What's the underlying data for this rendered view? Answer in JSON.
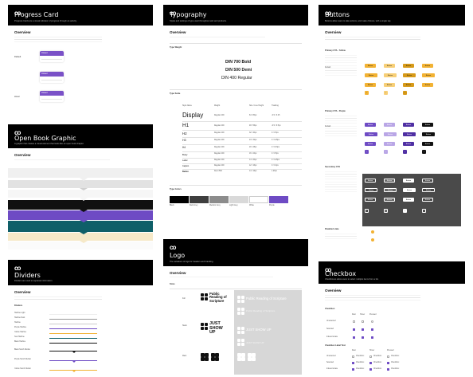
{
  "colors": {
    "black": "#000000",
    "purple": "#6e4bc4",
    "purple_light": "#b9a6e6",
    "yellow": "#f2b233",
    "yellow_dark": "#d79a18",
    "teal": "#0f5f68",
    "cream": "#f6e9c8",
    "grey_dark": "#4a4a4a"
  },
  "progress_card": {
    "title": "Progress Card",
    "subtitle": "Progress Cards are a visual indicator of progress through an activity.",
    "overview_heading": "Overview",
    "row_labels": [
      "Default",
      "Hover"
    ],
    "card_label": "Closed"
  },
  "book_graphic": {
    "title": "Open Book Graphic",
    "subtitle": "A graphic that creates a visual element that looks like an open book chapter.",
    "overview_heading": "Overview"
  },
  "dividers": {
    "title": "Dividers",
    "subtitle": "Dividers are used to separate information.",
    "overview_heading": "Overview",
    "list_heading": "Dividers",
    "items": [
      "Hairline Light",
      "Hairline Dark",
      "Hairline",
      "Purple Hairline",
      "Yellow Hairline",
      "Teal Hairline",
      "Black Hairline",
      "Black Notch Divider",
      "Purple Notch Divider",
      "Yellow Notch Divider"
    ]
  },
  "typography": {
    "title": "Typography",
    "subtitle": "Styles and settings of type used throughout web and products.",
    "overview_heading": "Overview",
    "weight_heading": "Type Weight",
    "weights": [
      "DIN 700 Bold",
      "DIN 500 Demi",
      "DIN 400 Regular"
    ],
    "scale_heading": "Type Scale",
    "scale_columns": [
      "Style Name",
      "Weight",
      "Size / Line Height",
      "Tracking"
    ],
    "scale_rows": [
      {
        "name": "Display",
        "weight": "Regular 400",
        "size": "64 / 80px",
        "track": "-0.5 / 0.25"
      },
      {
        "name": "H1",
        "weight": "Regular 400",
        "size": "48 / 56px",
        "track": "-0.5 / 0.5px"
      },
      {
        "name": "H2",
        "weight": "Regular 400",
        "size": "32 / 40px",
        "track": "0 / 0.5px"
      },
      {
        "name": "H3",
        "weight": "Regular 400",
        "size": "24 / 32px",
        "track": "0 / 0.25px"
      },
      {
        "name": "H4",
        "weight": "Regular 400",
        "size": "20 / 28px",
        "track": "0 / 0.15px"
      },
      {
        "name": "Body",
        "weight": "Regular 400",
        "size": "16 / 24px",
        "track": "0 / 0.5px"
      },
      {
        "name": "Label",
        "weight": "Regular 400",
        "size": "14 / 20px",
        "track": "0 / 0.25px"
      },
      {
        "name": "Caption",
        "weight": "Regular 400",
        "size": "12 / 16px",
        "track": "0 / 0.4px"
      },
      {
        "name": "Button",
        "weight": "Demi 500",
        "size": "14 / 16px",
        "track": "1.25px"
      }
    ],
    "colors_heading": "Type Colors",
    "swatch_names": [
      "Black",
      "Dark Grey",
      "Medium Grey",
      "Light Grey",
      "White",
      "Purple"
    ]
  },
  "logo": {
    "title": "Logo",
    "subtitle": "The variations of logo for headers and branding.",
    "overview_heading": "Overview",
    "sizes_heading": "Sizes",
    "row_labels": [
      "Full",
      "Stack",
      "Mark"
    ],
    "full_name": "Public Reading of Scripture",
    "stack_name": "JUST SHOW UP"
  },
  "buttons": {
    "title": "Buttons",
    "subtitle": "Buttons allow users to take actions, and make choices, with a single tap.",
    "overview_heading": "Overview",
    "primary_yellow": "Primary CTA - Yellow",
    "primary_purple": "Primary CTA - Purple",
    "secondary": "Secondary CTA",
    "disabled": "Disabled state",
    "state_labels": [
      "Default",
      "Hover",
      "Pressed",
      "Active"
    ],
    "button_label": "Button",
    "state_rows": [
      "Large",
      "Medium",
      "Small",
      "Icon"
    ]
  },
  "checkbox": {
    "title": "Checkbox",
    "subtitle": "Checkboxes allow users to select multiple items from a list.",
    "overview_heading": "Overview",
    "list_heading": "Checkbox",
    "columns": [
      "Rest",
      "Hover",
      "Pressed"
    ],
    "rows": [
      "Unselected",
      "Selected",
      "Indeterminate"
    ],
    "labels_heading": "Checkbox Label Text",
    "option_label": "Checkbox"
  }
}
